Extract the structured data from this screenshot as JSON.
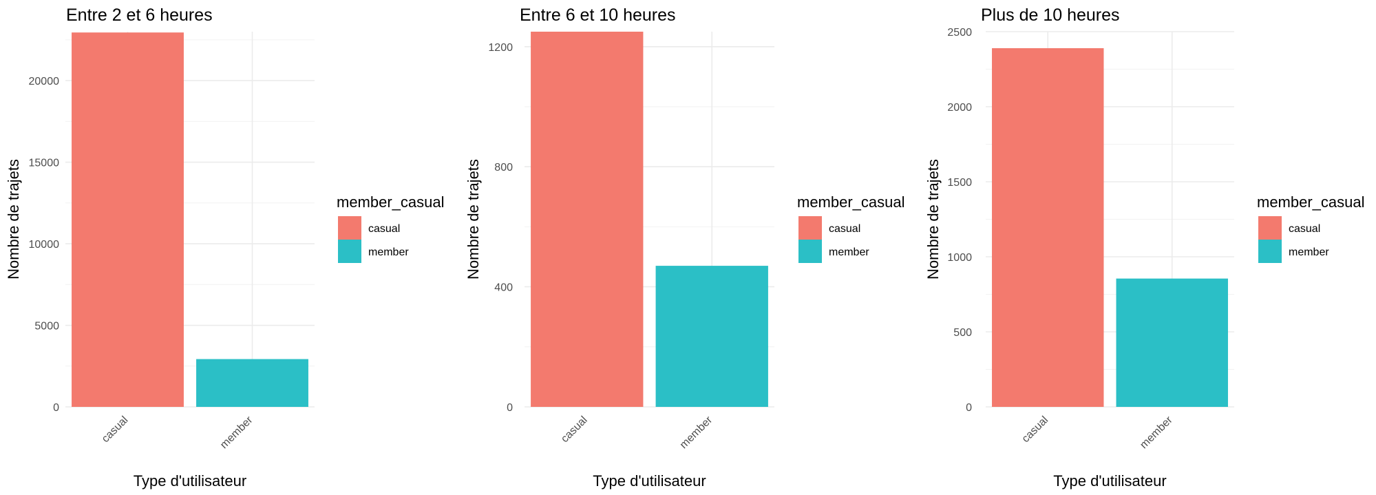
{
  "chart_data": [
    {
      "type": "bar",
      "title": "Entre 2 et 6 heures",
      "xlabel": "Type d'utilisateur",
      "ylabel": "Nombre de trajets",
      "categories": [
        "casual",
        "member"
      ],
      "values": [
        22950,
        2930
      ],
      "colors": [
        "#F37A6E",
        "#2BBFC6"
      ],
      "ylim": [
        0,
        23000
      ],
      "yticks": [
        0,
        5000,
        10000,
        15000,
        20000
      ],
      "grid": true,
      "legend": {
        "title": "member_casual",
        "position": "right",
        "entries": [
          {
            "label": "casual",
            "color": "#F37A6E"
          },
          {
            "label": "member",
            "color": "#2BBFC6"
          }
        ]
      }
    },
    {
      "type": "bar",
      "title": "Entre 6 et 10 heures",
      "xlabel": "Type d'utilisateur",
      "ylabel": "Nombre de trajets",
      "categories": [
        "casual",
        "member"
      ],
      "values": [
        1250,
        470
      ],
      "colors": [
        "#F37A6E",
        "#2BBFC6"
      ],
      "ylim": [
        0,
        1250
      ],
      "yticks": [
        0,
        400,
        800,
        1200
      ],
      "grid": true,
      "legend": {
        "title": "member_casual",
        "position": "right",
        "entries": [
          {
            "label": "casual",
            "color": "#F37A6E"
          },
          {
            "label": "member",
            "color": "#2BBFC6"
          }
        ]
      }
    },
    {
      "type": "bar",
      "title": "Plus de 10 heures",
      "xlabel": "Type d'utilisateur",
      "ylabel": "Nombre de trajets",
      "categories": [
        "casual",
        "member"
      ],
      "values": [
        2390,
        855
      ],
      "colors": [
        "#F37A6E",
        "#2BBFC6"
      ],
      "ylim": [
        0,
        2500
      ],
      "yticks": [
        0,
        500,
        1000,
        1500,
        2000,
        2500
      ],
      "grid": true,
      "legend": {
        "title": "member_casual",
        "position": "right",
        "entries": [
          {
            "label": "casual",
            "color": "#F37A6E"
          },
          {
            "label": "member",
            "color": "#2BBFC6"
          }
        ]
      }
    }
  ]
}
